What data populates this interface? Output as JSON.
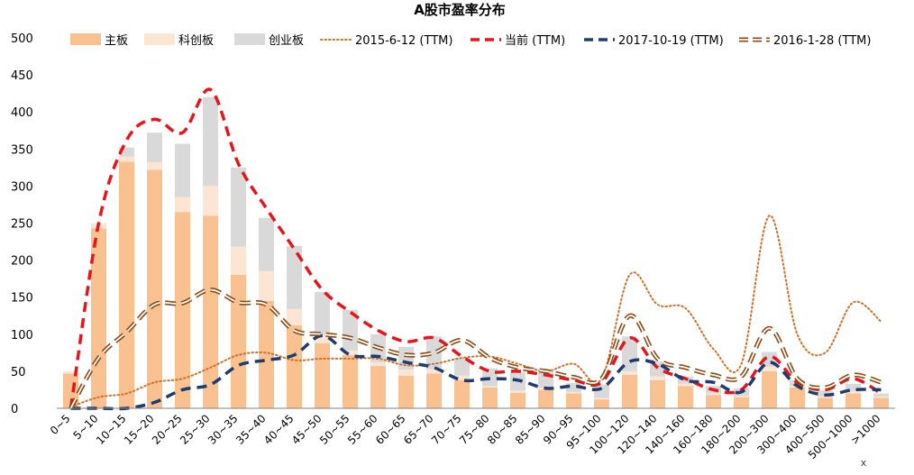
{
  "chart_data": {
    "type": "bar",
    "title": "A股市盈率分布",
    "xlabel": "",
    "ylabel": "",
    "x_axis_end_marker": "x",
    "ylim": [
      0,
      500
    ],
    "yticks": [
      0,
      50,
      100,
      150,
      200,
      250,
      300,
      350,
      400,
      450,
      500
    ],
    "grid": false,
    "legend_position": "top",
    "categories": [
      "0~5",
      "5~10",
      "10~15",
      "15~20",
      "20~25",
      "25~30",
      "30~35",
      "35~40",
      "40~45",
      "45~50",
      "50~55",
      "55~60",
      "60~65",
      "65~70",
      "70~75",
      "75~80",
      "80~85",
      "85~90",
      "90~95",
      "95~100",
      "100~120",
      "120~140",
      "140~160",
      "160~180",
      "180~200",
      "200~300",
      "300~400",
      "400~500",
      "500~1000",
      ">1000"
    ],
    "stacked_series": [
      {
        "name": "主板",
        "color": "#f9c18f",
        "values": [
          47,
          243,
          333,
          322,
          265,
          260,
          180,
          145,
          112,
          88,
          72,
          57,
          44,
          47,
          38,
          28,
          21,
          25,
          20,
          12,
          45,
          38,
          30,
          18,
          15,
          50,
          28,
          14,
          20,
          14
        ]
      },
      {
        "name": "科创板",
        "color": "#fce5d3",
        "values": [
          3,
          7,
          7,
          10,
          20,
          40,
          38,
          40,
          22,
          12,
          6,
          5,
          8,
          6,
          6,
          2,
          3,
          3,
          2,
          2,
          5,
          5,
          3,
          2,
          2,
          6,
          2,
          2,
          3,
          2
        ]
      },
      {
        "name": "创业板",
        "color": "#d9d9d9",
        "values": [
          0,
          0,
          12,
          40,
          72,
          120,
          107,
          72,
          85,
          57,
          55,
          38,
          31,
          44,
          24,
          24,
          25,
          25,
          12,
          18,
          47,
          20,
          10,
          10,
          10,
          20,
          8,
          8,
          10,
          4
        ]
      }
    ],
    "line_series": [
      {
        "name": "2015-6-12 (TTM)",
        "color": "#d0702a",
        "style": "dotted",
        "values": [
          2,
          15,
          20,
          35,
          40,
          55,
          72,
          75,
          65,
          67,
          67,
          67,
          58,
          60,
          68,
          70,
          60,
          50,
          60,
          40,
          180,
          140,
          135,
          80,
          60,
          260,
          100,
          75,
          143,
          117
        ]
      },
      {
        "name": "当前 (TTM)",
        "color": "#e8141b",
        "style": "dashed",
        "values": [
          0,
          250,
          362,
          390,
          372,
          430,
          330,
          270,
          215,
          160,
          130,
          105,
          90,
          95,
          70,
          50,
          50,
          45,
          38,
          35,
          95,
          55,
          40,
          25,
          25,
          70,
          35,
          25,
          40,
          20
        ]
      },
      {
        "name": "2017-10-19 (TTM)",
        "color": "#1f3c6e",
        "style": "dashed",
        "values": [
          0,
          0,
          0,
          8,
          25,
          32,
          58,
          65,
          72,
          98,
          72,
          70,
          62,
          55,
          38,
          40,
          38,
          27,
          30,
          27,
          63,
          60,
          38,
          35,
          22,
          62,
          30,
          18,
          25,
          25
        ]
      },
      {
        "name": "2016-1-28 (TTM)",
        "color": "#8b4a14",
        "style": "double-dashed",
        "values": [
          0,
          68,
          103,
          140,
          142,
          160,
          143,
          140,
          105,
          100,
          95,
          82,
          72,
          75,
          92,
          68,
          55,
          50,
          42,
          40,
          125,
          67,
          55,
          45,
          43,
          108,
          40,
          28,
          45,
          35
        ]
      }
    ]
  }
}
